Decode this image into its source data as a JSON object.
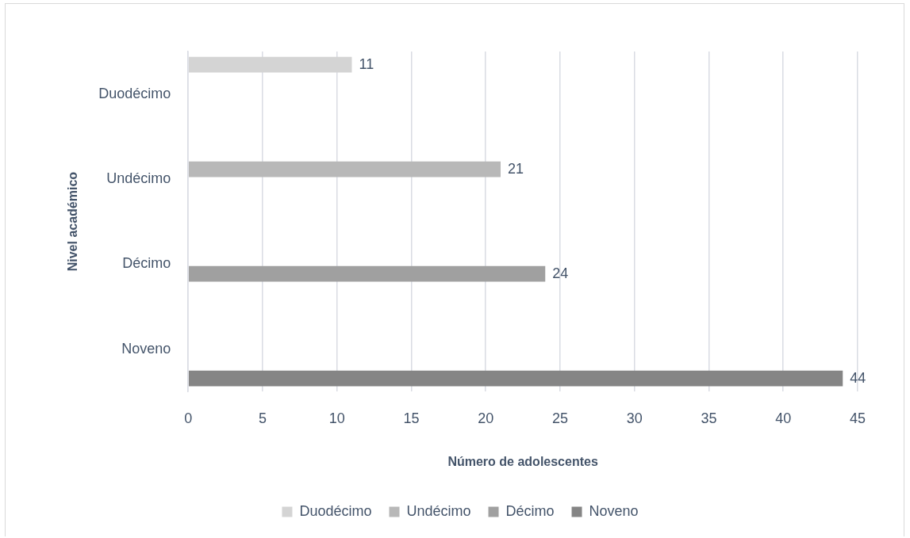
{
  "chart_data": {
    "type": "bar",
    "orientation": "horizontal",
    "xlabel": "Número de adolescentes",
    "ylabel": "Nivel académico",
    "categories": [
      "Duodécimo",
      "Undécimo",
      "Décimo",
      "Noveno"
    ],
    "series": [
      {
        "name": "Duodécimo",
        "color": "#d4d4d4",
        "values": [
          11,
          null,
          null,
          null
        ]
      },
      {
        "name": "Undécimo",
        "color": "#b8b8b8",
        "values": [
          null,
          21,
          null,
          null
        ]
      },
      {
        "name": "Décimo",
        "color": "#a0a0a0",
        "values": [
          null,
          null,
          24,
          null
        ]
      },
      {
        "name": "Noveno",
        "color": "#858585",
        "values": [
          null,
          null,
          null,
          44
        ]
      }
    ],
    "xlim": [
      0,
      45
    ],
    "xticks": [
      0,
      5,
      10,
      15,
      20,
      25,
      30,
      35,
      40,
      45
    ],
    "grid": "x",
    "legend": "bottom",
    "data_labels": true
  }
}
